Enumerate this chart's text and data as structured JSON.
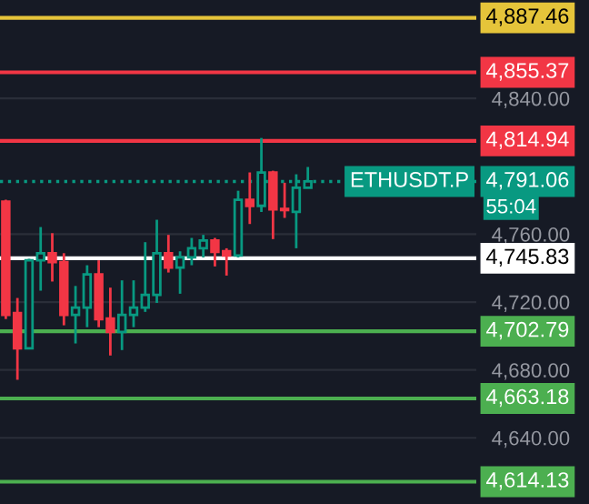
{
  "chart_data": {
    "type": "candlestick",
    "categories": [
      null,
      null,
      null,
      null,
      null,
      null,
      null,
      null,
      null,
      null,
      null,
      null,
      null,
      null,
      null,
      null,
      null,
      null,
      null,
      null,
      null,
      null,
      null,
      null,
      null,
      null,
      null,
      null,
      null,
      null,
      null,
      null,
      null,
      null,
      null,
      null,
      null,
      null,
      null,
      null,
      null
    ],
    "ohlc": [
      [
        4779.2,
        4780.3,
        4710.0,
        4712.4
      ],
      [
        4713.5,
        4722.4,
        4674.2,
        4692.7
      ],
      [
        4692.7,
        4745.5,
        4692.7,
        4744.6
      ],
      [
        4744.6,
        4764.2,
        4726.7,
        4748.8
      ],
      [
        4748.8,
        4760.6,
        4732.1,
        4743.5
      ],
      [
        4743.5,
        4748.8,
        4706.3,
        4712.4
      ],
      [
        4712.4,
        4729.5,
        4695.6,
        4716.7
      ],
      [
        4716.7,
        4741.7,
        4705.2,
        4736.3
      ],
      [
        4736.3,
        4744.6,
        4705.2,
        4709.9
      ],
      [
        4710.3,
        4728.5,
        4688.5,
        4702.4
      ],
      [
        4702.4,
        4732.8,
        4691.7,
        4712.4
      ],
      [
        4712.4,
        4732.8,
        4705.2,
        4716.7
      ],
      [
        4716.7,
        4755.3,
        4714.2,
        4724.2
      ],
      [
        4724.2,
        4768.5,
        4719.5,
        4748.8
      ],
      [
        4748.8,
        4759.6,
        4737.4,
        4740.3
      ],
      [
        4740.3,
        4749.9,
        4724.9,
        4746.3
      ],
      [
        4746.3,
        4757.8,
        4741.7,
        4751.7
      ],
      [
        4751.7,
        4759.6,
        4746.3,
        4756.3
      ],
      [
        4756.3,
        4757.8,
        4741.0,
        4749.6
      ],
      [
        4749.9,
        4751.7,
        4735.6,
        4747.4
      ],
      [
        4747.4,
        4785.6,
        4746.3,
        4780.3
      ],
      [
        4780.3,
        4796.4,
        4766.0,
        4776.7
      ],
      [
        4776.7,
        4816.7,
        4773.1,
        4796.4
      ],
      [
        4796.4,
        4797.4,
        4757.1,
        4774.6
      ],
      [
        4774.9,
        4790.3,
        4769.6,
        4774.2
      ],
      [
        4773.1,
        4795.3,
        4751.7,
        4787.4
      ],
      [
        4787.4,
        4799.6,
        4787.4,
        4791.06
      ],
      null,
      null,
      null,
      null,
      null,
      null,
      null,
      null,
      null,
      null,
      null,
      null,
      null,
      null
    ],
    "colors": [
      "#f23645",
      "#f23645",
      "#089981",
      "#089981",
      "#f23645",
      "#f23645",
      "#089981",
      "#089981",
      "#f23645",
      "#f23645",
      "#089981",
      "#089981",
      "#089981",
      "#089981",
      "#f23645",
      "#089981",
      "#089981",
      "#089981",
      "#f23645",
      "#f23645",
      "#089981",
      "#f23645",
      "#089981",
      "#f23645",
      "#f23645",
      "#089981",
      "#089981",
      null,
      null,
      null,
      null,
      null,
      null,
      null,
      null,
      null,
      null,
      null,
      null,
      null,
      null
    ],
    "ylim": [
      4601,
      4898
    ],
    "yticks": [
      {
        "value": 4640,
        "label": "4,640.00"
      },
      {
        "value": 4680,
        "label": "4,680.00"
      },
      {
        "value": 4720,
        "label": "4,720.00"
      },
      {
        "value": 4760,
        "label": "4,760.00"
      },
      {
        "value": 4840,
        "label": "4,840.00"
      }
    ],
    "grid": "y",
    "ref_lines": [
      {
        "axis": "y",
        "value": 4887.46,
        "label": "4,887.46",
        "color": "#e5c43a",
        "line_style": "solid"
      },
      {
        "axis": "y",
        "value": 4855.37,
        "label": "4,855.37",
        "color": "#f23645",
        "line_style": "solid"
      },
      {
        "axis": "y",
        "value": 4814.94,
        "label": "4,814.94",
        "color": "#f23645",
        "line_style": "solid"
      },
      {
        "axis": "y",
        "value": 4791.06,
        "label": "4,791.06",
        "color": "#089981",
        "line_style": "dotted"
      },
      {
        "axis": "y",
        "value": 4745.83,
        "label": "4,745.83",
        "color": "#ffffff",
        "line_style": "solid"
      },
      {
        "axis": "y",
        "value": 4702.79,
        "label": "4,702.79",
        "color": "#4caf50",
        "line_style": "solid"
      },
      {
        "axis": "y",
        "value": 4663.18,
        "label": "4,663.18",
        "color": "#4caf50",
        "line_style": "solid"
      },
      {
        "axis": "y",
        "value": 4614.13,
        "label": "4,614.13",
        "color": "#4caf50",
        "line_style": "solid"
      }
    ],
    "annotations": [
      {
        "text": "ETHUSDT.P",
        "y": 4791.06
      },
      "55:04"
    ]
  }
}
